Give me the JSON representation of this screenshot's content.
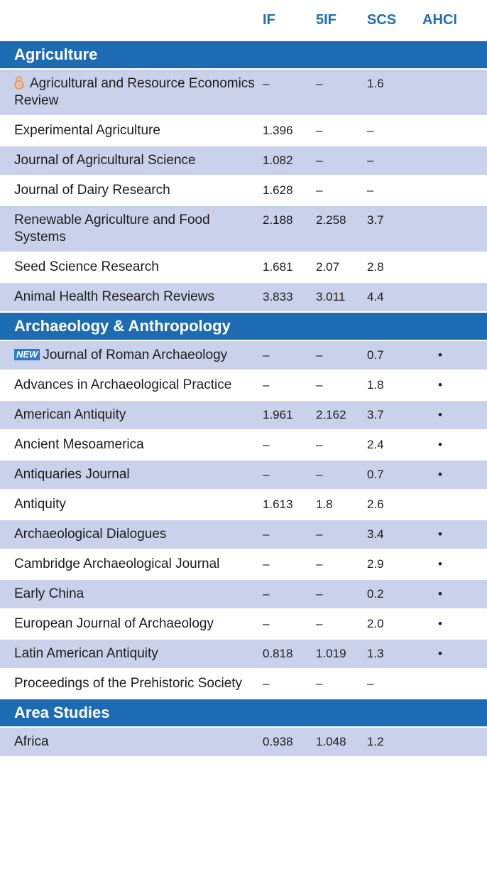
{
  "columns": [
    "IF",
    "5IF",
    "SCS",
    "AHCI"
  ],
  "sections": [
    {
      "title": "Agriculture",
      "rows": [
        {
          "name": "Agricultural and Resource Economics Review",
          "icon": "open-access",
          "cells": [
            "–",
            "–",
            "1.6",
            null
          ]
        },
        {
          "name": "Experimental Agriculture",
          "cells": [
            "1.396",
            "–",
            "–",
            null
          ]
        },
        {
          "name": "Journal of Agricultural Science",
          "cells": [
            "1.082",
            "–",
            "–",
            null
          ]
        },
        {
          "name": "Journal of Dairy Research",
          "cells": [
            "1.628",
            "–",
            "–",
            null
          ]
        },
        {
          "name": "Renewable Agriculture and Food Systems",
          "cells": [
            "2.188",
            "2.258",
            "3.7",
            null
          ]
        },
        {
          "name": "Seed Science Research",
          "cells": [
            "1.681",
            "2.07",
            "2.8",
            null
          ]
        },
        {
          "name": "Animal Health Research Reviews",
          "cells": [
            "3.833",
            "3.011",
            "4.4",
            null
          ]
        }
      ]
    },
    {
      "title": "Archaeology & Anthropology",
      "rows": [
        {
          "name": "Journal of Roman Archaeology",
          "badge": "NEW",
          "cells": [
            "–",
            "–",
            "0.7",
            "•"
          ]
        },
        {
          "name": "Advances in Archaeological Practice",
          "cells": [
            "–",
            "–",
            "1.8",
            "•"
          ]
        },
        {
          "name": "American Antiquity",
          "cells": [
            "1.961",
            "2.162",
            "3.7",
            "•"
          ]
        },
        {
          "name": "Ancient Mesoamerica",
          "cells": [
            "–",
            "–",
            "2.4",
            "•"
          ]
        },
        {
          "name": "Antiquaries Journal",
          "cells": [
            "–",
            "–",
            "0.7",
            "•"
          ]
        },
        {
          "name": "Antiquity",
          "cells": [
            "1.613",
            "1.8",
            "2.6",
            null
          ]
        },
        {
          "name": "Archaeological Dialogues",
          "cells": [
            "–",
            "–",
            "3.4",
            "•"
          ]
        },
        {
          "name": "Cambridge Archaeological Journal",
          "cells": [
            "–",
            "–",
            "2.9",
            "•"
          ]
        },
        {
          "name": "Early China",
          "cells": [
            "–",
            "–",
            "0.2",
            "•"
          ]
        },
        {
          "name": "European Journal of Archaeology",
          "cells": [
            "–",
            "–",
            "2.0",
            "•"
          ]
        },
        {
          "name": "Latin American Antiquity",
          "cells": [
            "0.818",
            "1.019",
            "1.3",
            "•"
          ]
        },
        {
          "name": "Proceedings of the Prehistoric Society",
          "cells": [
            "–",
            "–",
            "–",
            null
          ]
        }
      ]
    },
    {
      "title": "Area Studies",
      "rows": [
        {
          "name": "Africa",
          "cells": [
            "0.938",
            "1.048",
            "1.2",
            null
          ]
        }
      ]
    }
  ]
}
